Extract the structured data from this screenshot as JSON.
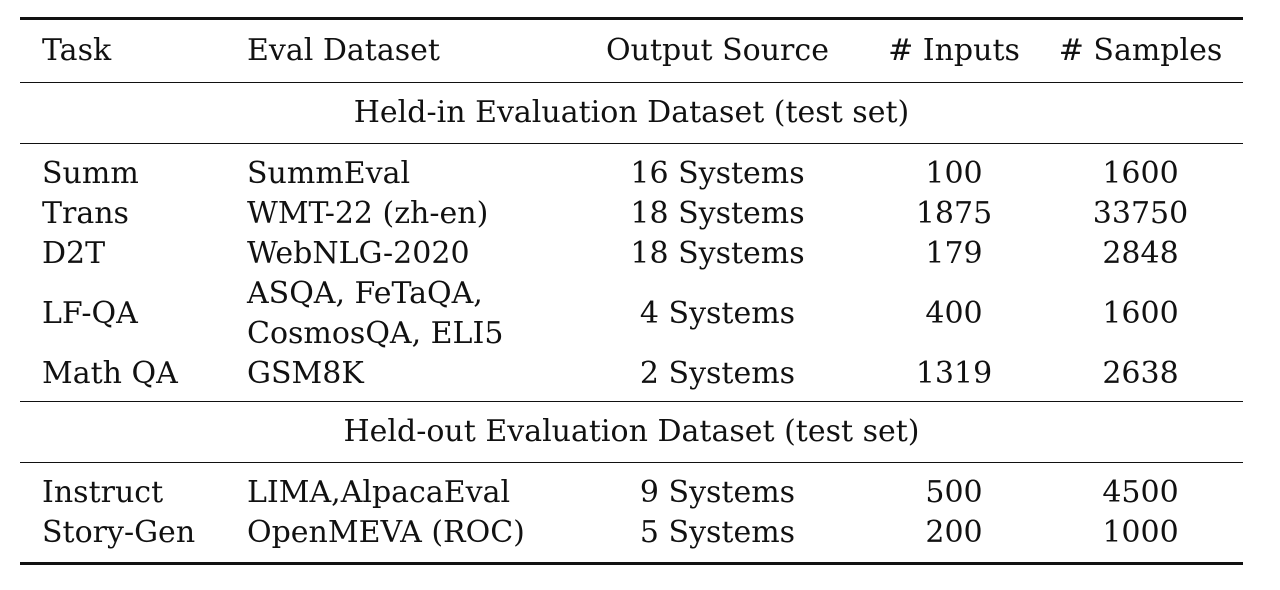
{
  "table": {
    "headers": [
      "Task",
      "Eval Dataset",
      "Output Source",
      "# Inputs",
      "# Samples"
    ],
    "sections": [
      {
        "title": "Held-in Evaluation Dataset (test set)",
        "rows": [
          {
            "task": "Summ",
            "dataset": [
              "SummEval"
            ],
            "source": "16 Systems",
            "inputs": "100",
            "samples": "1600"
          },
          {
            "task": "Trans",
            "dataset": [
              "WMT-22 (zh-en)"
            ],
            "source": "18 Systems",
            "inputs": "1875",
            "samples": "33750"
          },
          {
            "task": "D2T",
            "dataset": [
              "WebNLG-2020"
            ],
            "source": "18 Systems",
            "inputs": "179",
            "samples": "2848"
          },
          {
            "task": "LF-QA",
            "dataset": [
              "ASQA, FeTaQA,",
              "CosmosQA, ELI5"
            ],
            "source": "4 Systems",
            "inputs": "400",
            "samples": "1600"
          },
          {
            "task": "Math QA",
            "dataset": [
              "GSM8K"
            ],
            "source": "2 Systems",
            "inputs": "1319",
            "samples": "2638"
          }
        ]
      },
      {
        "title": "Held-out Evaluation Dataset (test set)",
        "rows": [
          {
            "task": "Instruct",
            "dataset": [
              "LIMA,AlpacaEval"
            ],
            "source": "9 Systems",
            "inputs": "500",
            "samples": "4500"
          },
          {
            "task": "Story-Gen",
            "dataset": [
              "OpenMEVA (ROC)"
            ],
            "source": "5 Systems",
            "inputs": "200",
            "samples": "1000"
          }
        ]
      }
    ]
  }
}
